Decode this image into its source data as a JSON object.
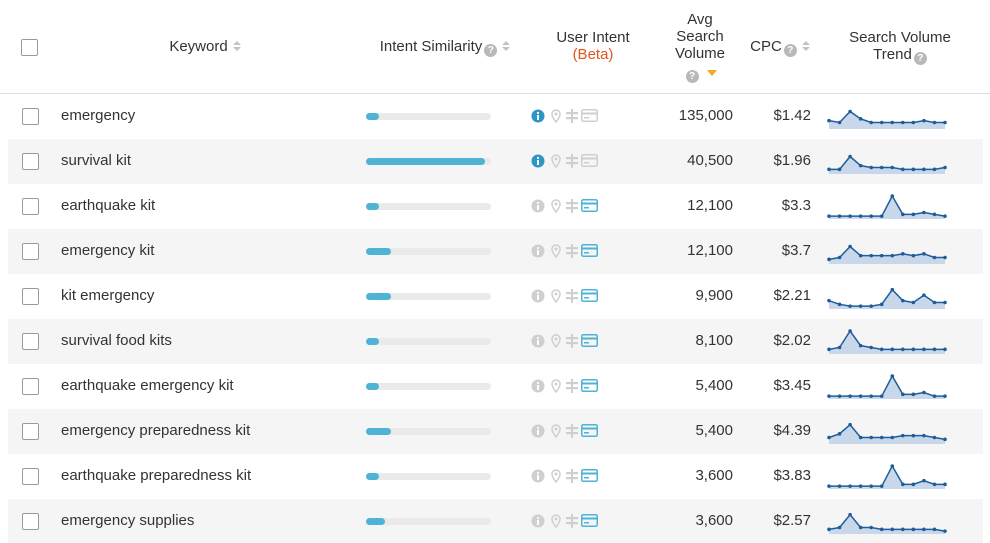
{
  "header": {
    "keyword": "Keyword",
    "intent_similarity": "Intent Similarity",
    "user_intent_l1": "User Intent",
    "user_intent_l2": "(Beta)",
    "avg_l1": "Avg",
    "avg_l2": "Search",
    "avg_l3": "Volume",
    "cpc": "CPC",
    "trend_l1": "Search Volume",
    "trend_l2": "Trend"
  },
  "colors": {
    "accent": "#4fb3d6",
    "info_active": "#2f95c4",
    "icon_muted": "#cfcfcf",
    "beta": "#e2561a",
    "sort_active": "#f5a623",
    "spark_line": "#1f5d99",
    "spark_fill": "#c8d7ea",
    "row_alt": "#f5f5f5"
  },
  "rows": [
    {
      "keyword": "emergency",
      "similarity": 0.1,
      "intent": [
        "info"
      ],
      "volume": "135,000",
      "cpc": "$1.42",
      "trend": [
        4,
        3,
        9,
        5,
        3,
        3,
        3,
        3,
        3,
        4,
        3,
        3
      ]
    },
    {
      "keyword": "survival kit",
      "similarity": 0.95,
      "intent": [
        "info"
      ],
      "volume": "40,500",
      "cpc": "$1.96",
      "trend": [
        2,
        2,
        9,
        4,
        3,
        3,
        3,
        2,
        2,
        2,
        2,
        3
      ]
    },
    {
      "keyword": "earthquake kit",
      "similarity": 0.1,
      "intent": [
        "transactional"
      ],
      "volume": "12,100",
      "cpc": "$3.3",
      "trend": [
        1,
        1,
        1,
        1,
        1,
        1,
        12,
        2,
        2,
        3,
        2,
        1
      ]
    },
    {
      "keyword": "emergency kit",
      "similarity": 0.2,
      "intent": [
        "transactional"
      ],
      "volume": "12,100",
      "cpc": "$3.7",
      "trend": [
        2,
        3,
        9,
        4,
        4,
        4,
        4,
        5,
        4,
        5,
        3,
        3
      ]
    },
    {
      "keyword": "kit emergency",
      "similarity": 0.2,
      "intent": [
        "transactional"
      ],
      "volume": "9,900",
      "cpc": "$2.21",
      "trend": [
        4,
        2,
        1,
        1,
        1,
        2,
        10,
        4,
        3,
        7,
        3,
        3
      ]
    },
    {
      "keyword": "survival food kits",
      "similarity": 0.1,
      "intent": [
        "transactional"
      ],
      "volume": "8,100",
      "cpc": "$2.02",
      "trend": [
        2,
        3,
        12,
        4,
        3,
        2,
        2,
        2,
        2,
        2,
        2,
        2
      ]
    },
    {
      "keyword": "earthquake emergency kit",
      "similarity": 0.1,
      "intent": [
        "transactional"
      ],
      "volume": "5,400",
      "cpc": "$3.45",
      "trend": [
        1,
        1,
        1,
        1,
        1,
        1,
        12,
        2,
        2,
        3,
        1,
        1
      ]
    },
    {
      "keyword": "emergency preparedness kit",
      "similarity": 0.2,
      "intent": [
        "transactional"
      ],
      "volume": "5,400",
      "cpc": "$4.39",
      "trend": [
        3,
        5,
        10,
        3,
        3,
        3,
        3,
        4,
        4,
        4,
        3,
        2
      ]
    },
    {
      "keyword": "earthquake preparedness kit",
      "similarity": 0.1,
      "intent": [
        "transactional"
      ],
      "volume": "3,600",
      "cpc": "$3.83",
      "trend": [
        1,
        1,
        1,
        1,
        1,
        1,
        12,
        2,
        2,
        4,
        2,
        2
      ]
    },
    {
      "keyword": "emergency supplies",
      "similarity": 0.15,
      "intent": [
        "transactional"
      ],
      "volume": "3,600",
      "cpc": "$2.57",
      "trend": [
        2,
        3,
        10,
        3,
        3,
        2,
        2,
        2,
        2,
        2,
        2,
        1
      ]
    }
  ]
}
